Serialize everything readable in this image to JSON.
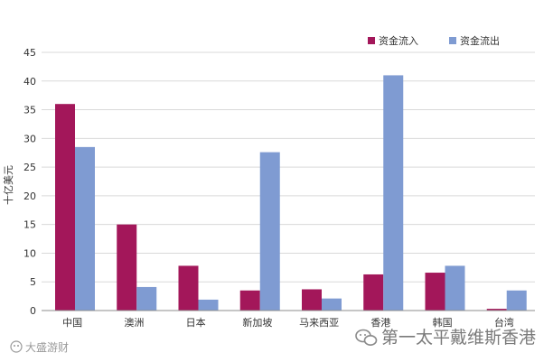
{
  "chart_data": {
    "type": "bar",
    "ylabel": "十亿美元",
    "ylim": [
      0,
      45
    ],
    "yticks": [
      0,
      5,
      10,
      15,
      20,
      25,
      30,
      35,
      40,
      45
    ],
    "categories": [
      "中国",
      "澳洲",
      "日本",
      "新加坡",
      "马来西亚",
      "香港",
      "韩国",
      "台湾"
    ],
    "series": [
      {
        "name": "资金流入",
        "color": "#a3175a",
        "values": [
          36,
          15,
          7.8,
          3.5,
          3.7,
          6.3,
          6.6,
          0.3
        ]
      },
      {
        "name": "资金流出",
        "color": "#7f9bd2",
        "values": [
          28.5,
          4.1,
          1.9,
          27.6,
          2.1,
          41,
          7.8,
          3.5
        ]
      }
    ],
    "legend": "top-right",
    "grid": true
  },
  "watermark": {
    "right_text": "第一太平戴维斯香港",
    "left_text": "大盛游财"
  }
}
